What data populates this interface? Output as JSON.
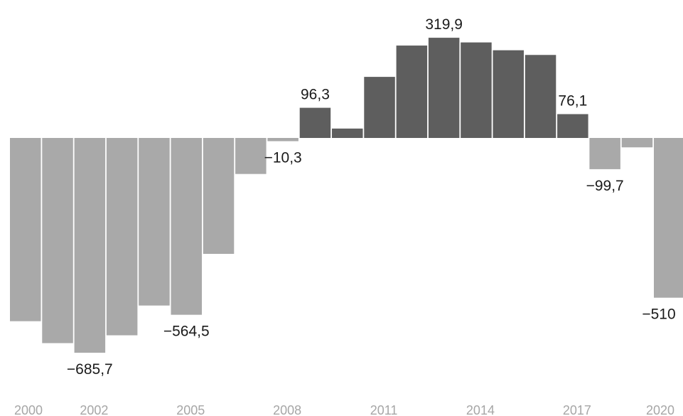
{
  "chart_data": {
    "type": "bar",
    "categories": [
      "2000",
      "2001",
      "2002",
      "2003",
      "2004",
      "2005",
      "2006",
      "2007",
      "2008",
      "2009",
      "2010",
      "2011",
      "2012",
      "2013",
      "2014",
      "2015",
      "2016",
      "2017",
      "2018",
      "2019",
      "2020"
    ],
    "values": [
      -585,
      -655,
      -685.7,
      -630,
      -535,
      -564.5,
      -370,
      -115,
      -10.3,
      96.3,
      30,
      195,
      295,
      319.9,
      305,
      280,
      265,
      76.1,
      -99.7,
      -30,
      -510
    ],
    "data_labels": [
      {
        "index": 2,
        "text": "−685,7"
      },
      {
        "index": 5,
        "text": "−564,5"
      },
      {
        "index": 8,
        "text": "−10,3"
      },
      {
        "index": 9,
        "text": "96,3"
      },
      {
        "index": 13,
        "text": "319,9"
      },
      {
        "index": 17,
        "text": "76,1"
      },
      {
        "index": 18,
        "text": "−99,7"
      },
      {
        "index": 20,
        "text": "−510"
      }
    ],
    "x_tick_labels": [
      {
        "index": 0,
        "text": "2000"
      },
      {
        "index": 2,
        "text": "2002"
      },
      {
        "index": 5,
        "text": "2005"
      },
      {
        "index": 8,
        "text": "2008"
      },
      {
        "index": 11,
        "text": "2011"
      },
      {
        "index": 14,
        "text": "2014"
      },
      {
        "index": 17,
        "text": "2017"
      },
      {
        "index": 20,
        "text": "2020"
      }
    ],
    "ylim": [
      -735,
      350
    ],
    "colors": {
      "positive": "#5e5e5e",
      "negative": "#a9a9a9",
      "tick_text": "#a6a6a6",
      "label_text": "#1a1a1a"
    },
    "title": "",
    "xlabel": "",
    "ylabel": "",
    "grid": false,
    "legend": "none"
  }
}
